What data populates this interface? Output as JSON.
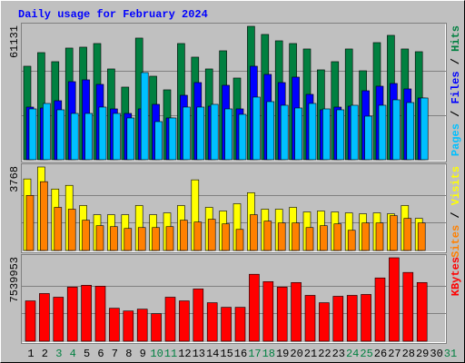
{
  "chart_data": {
    "type": "bar",
    "title": "Daily usage for February 2024",
    "categories": [
      "1",
      "2",
      "3",
      "4",
      "5",
      "6",
      "7",
      "8",
      "9",
      "10",
      "11",
      "12",
      "13",
      "14",
      "15",
      "16",
      "17",
      "18",
      "19",
      "20",
      "21",
      "22",
      "23",
      "24",
      "25",
      "26",
      "27",
      "28",
      "29",
      "30",
      "31"
    ],
    "category_colors": [
      "#000000",
      "#000000",
      "#008040",
      "#008040",
      "#000000",
      "#000000",
      "#000000",
      "#000000",
      "#000000",
      "#008040",
      "#008040",
      "#000000",
      "#000000",
      "#000000",
      "#000000",
      "#000000",
      "#008040",
      "#008040",
      "#000000",
      "#000000",
      "#000000",
      "#000000",
      "#000000",
      "#008040",
      "#008040",
      "#000000",
      "#000000",
      "#000000",
      "#000000",
      "#000000",
      "#008040"
    ],
    "separator": " / ",
    "panels": [
      {
        "ylim": [
          0,
          61131
        ],
        "yticks": [
          61131
        ],
        "grid": [
          20377,
          40754
        ],
        "series": [
          {
            "name": "Hits",
            "color": "#008040",
            "values": [
              42848,
              49088,
              44928,
              51168,
              51584,
              53248,
              41600,
              33280,
              55744,
              38272,
              32032,
              53248,
              47008,
              41600,
              49920,
              37440,
              61131,
              57408,
              54496,
              53248,
              50752,
              41184,
              44928,
              50752,
              40768,
              53664,
              56992,
              50752,
              49504,
              null,
              null
            ]
          },
          {
            "name": "Files",
            "color": "#0000ff",
            "values": [
              24128,
              23712,
              27040,
              35776,
              36608,
              34528,
              23296,
              21216,
              23296,
              25376,
              19136,
              29536,
              35360,
              24544,
              34112,
              23296,
              42848,
              39104,
              35360,
              37856,
              29952,
              22880,
              24128,
              24544,
              31616,
              33696,
              34944,
              32448,
              28288,
              null,
              null
            ]
          },
          {
            "name": "Pages",
            "color": "#00c0ff",
            "values": [
              23296,
              25792,
              22880,
              21216,
              21216,
              24128,
              21216,
              19136,
              39936,
              17472,
              19136,
              24128,
              24128,
              25376,
              23296,
              20800,
              28704,
              26624,
              24960,
              23712,
              25792,
              23296,
              22880,
              24960,
              19968,
              24960,
              27456,
              26208,
              28288,
              null,
              null
            ]
          }
        ]
      },
      {
        "ylim": [
          0,
          3768
        ],
        "yticks": [
          3768
        ],
        "grid": [
          1256,
          2512
        ],
        "series": [
          {
            "name": "Visits",
            "color": "#ffff00",
            "values": [
              3229,
              3768,
              2774,
              2939,
              2029,
              1615,
              1615,
              1615,
              2029,
              1615,
              1697,
              2029,
              3188,
              1946,
              1780,
              2111,
              2608,
              1863,
              1863,
              1946,
              1739,
              1780,
              1739,
              1697,
              1656,
              1697,
              1656,
              2029,
              1449,
              null,
              null
            ]
          },
          {
            "name": "Sites",
            "color": "#ff8000",
            "values": [
              2484,
              3105,
              1946,
              1863,
              1366,
              1118,
              1076,
              994,
              1035,
              1035,
              1076,
              1366,
              1283,
              1408,
              1201,
              952,
              1615,
              1325,
              1242,
              1242,
              1035,
              1118,
              1201,
              911,
              1242,
              1242,
              1573,
              1449,
              1242,
              null,
              null
            ]
          }
        ]
      },
      {
        "ylim": [
          0,
          7539953
        ],
        "yticks": [
          7539953
        ],
        "grid": [
          2513318,
          5026635
        ],
        "series": [
          {
            "name": "KBytes",
            "color": "#ff0000",
            "values": [
              3645708,
              4308564,
              3977136,
              4888563,
              5054277,
              4971420,
              2982852,
              2734281,
              2899995,
              2485710,
              3977136,
              3645708,
              4722849,
              3479994,
              3065709,
              3065709,
              6048561,
              5385705,
              4888563,
              5302848,
              4142850,
              3479994,
              4059993,
              4142850,
              4225707,
              5717133,
              7539953,
              6214275,
              5302848,
              null,
              null
            ]
          }
        ]
      }
    ]
  }
}
